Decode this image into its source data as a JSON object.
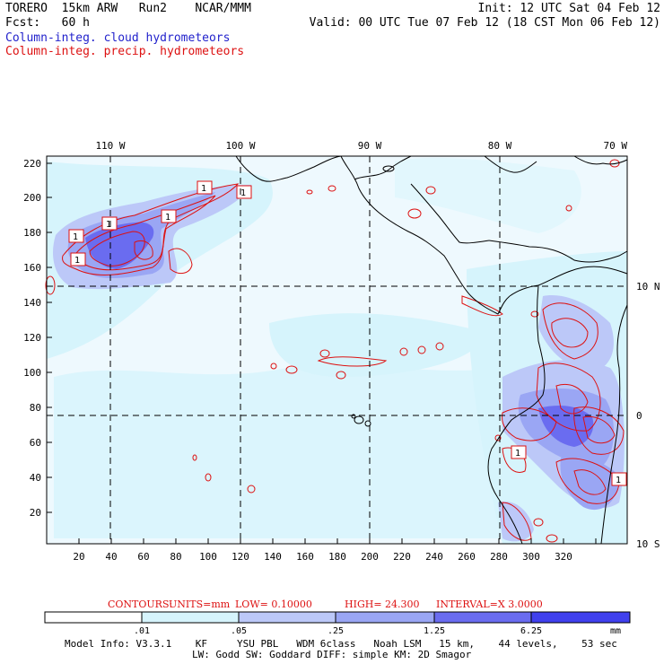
{
  "header": {
    "left_line1": "TORERO  15km ARW   Run2    NCAR/MMM",
    "left_line2": "Fcst:   60 h",
    "right_line1": "Init: 12 UTC Sat 04 Feb 12",
    "right_line2": "Valid: 00 UTC Tue 07 Feb 12 (18 CST Mon 06 Feb 12)",
    "field1": "Column-integ. cloud hydrometeors",
    "field2": "Column-integ. precip. hydrometeors",
    "field1_color": "#2222cc",
    "field2_color": "#dd1111"
  },
  "map": {
    "lon_labels": [
      "110 W",
      "100 W",
      "90 W",
      "80 W",
      "70 W"
    ],
    "lat_labels": [
      "10 N",
      "0",
      "10 S"
    ],
    "x_ticks": [
      "20",
      "40",
      "60",
      "80",
      "100",
      "120",
      "140",
      "160",
      "180",
      "200",
      "220",
      "240",
      "260",
      "280",
      "300",
      "320"
    ],
    "y_ticks": [
      "220",
      "200",
      "180",
      "160",
      "140",
      "120",
      "100",
      "80",
      "60",
      "40",
      "20"
    ],
    "contour_labels": [
      "1",
      "1",
      "1",
      "1",
      "1",
      "1",
      "1",
      "1"
    ]
  },
  "contours_line": {
    "prefix": "CONTOURS:",
    "units": "UNITS=mm",
    "low": "LOW= 0.10000",
    "high": "HIGH=  24.300",
    "interval": "INTERVAL=X  3.0000"
  },
  "colorbar": {
    "labels": [
      ".01",
      ".05",
      ".25",
      "1.25",
      "6.25"
    ],
    "unit": "mm",
    "colors": [
      "#ffffff",
      "#d6f4fc",
      "#bcc8f8",
      "#9aa6f4",
      "#6a6cf0",
      "#4040ee",
      "#2020e8"
    ]
  },
  "footer": {
    "line1": "Model Info: V3.3.1    KF     YSU PBL   WDM 6class   Noah LSM   15 km,    44 levels,    53 sec",
    "line2": "LW: Godd SW: Goddard DIFF: simple KM: 2D Smagor"
  }
}
